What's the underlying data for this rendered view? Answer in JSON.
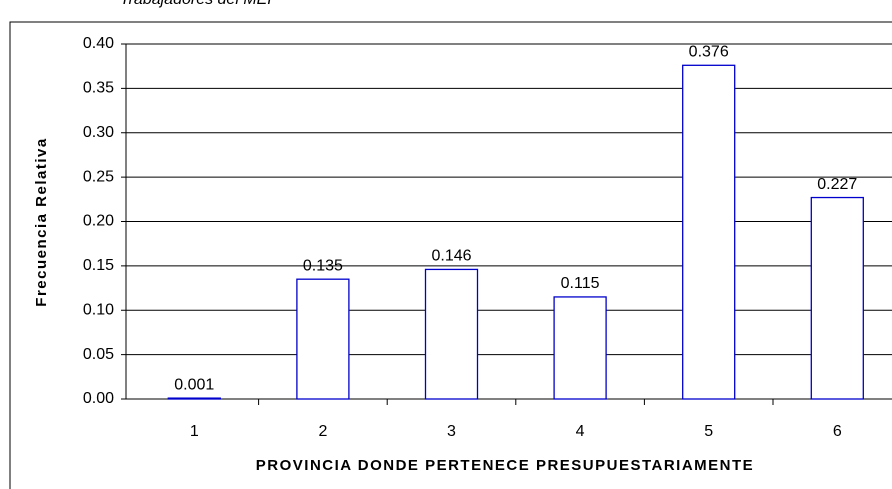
{
  "chart_data": {
    "type": "bar",
    "title": "Trabajadores del MEP",
    "xlabel": "PROVINCIA DONDE PERTENECE PRESUPUESTARIAMENTE",
    "ylabel": "Frecuencia Relativa",
    "categories": [
      "1",
      "2",
      "3",
      "4",
      "5",
      "6"
    ],
    "values": [
      0.001,
      0.135,
      0.146,
      0.115,
      0.376,
      0.227
    ],
    "color": "#0000cc",
    "ylim": [
      0,
      0.4
    ],
    "yticks": [
      {
        "value": 0,
        "label": "0.00"
      },
      {
        "value": 0.05,
        "label": "0.05"
      },
      {
        "value": 0.1,
        "label": "0.10"
      },
      {
        "value": 0.15,
        "label": "0.15"
      },
      {
        "value": 0.2,
        "label": "0.20"
      },
      {
        "value": 0.25,
        "label": "0.25"
      },
      {
        "value": 0.3,
        "label": "0.30"
      },
      {
        "value": 0.35,
        "label": "0.35"
      },
      {
        "value": 0.4,
        "label": "0.40"
      }
    ],
    "grid": true
  }
}
